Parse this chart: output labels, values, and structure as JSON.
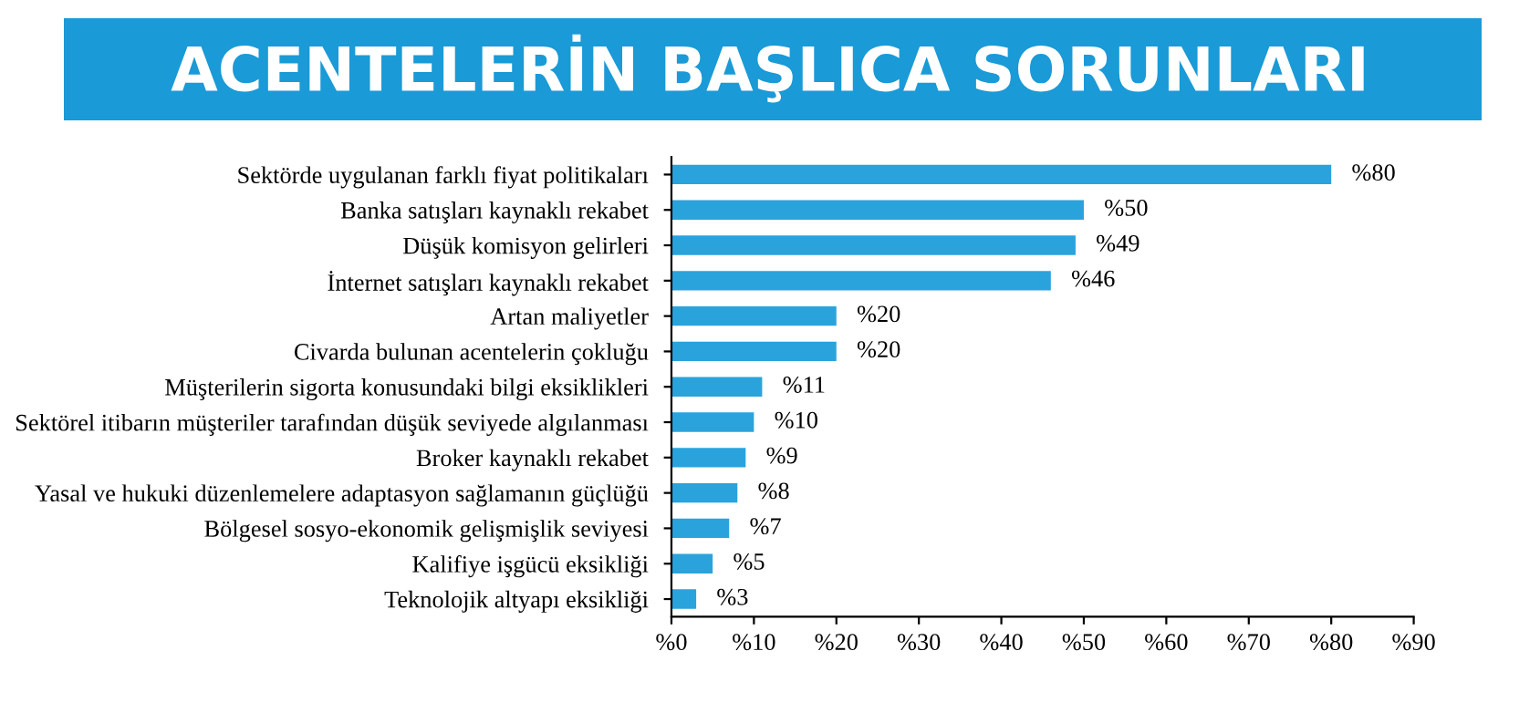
{
  "chart_data": {
    "type": "bar",
    "orientation": "horizontal",
    "title": "ACENTELERİN BAŞLICA SORUNLARI",
    "categories": [
      "Sektörde uygulanan farklı fiyat politikaları",
      "Banka satışları kaynaklı rekabet",
      "Düşük komisyon gelirleri",
      "İnternet satışları kaynaklı rekabet",
      "Artan maliyetler",
      "Civarda bulunan acentelerin çokluğu",
      "Müşterilerin sigorta konusundaki bilgi eksiklikleri",
      "Sektörel itibarın müşteriler tarafından düşük seviyede algılanması",
      "Broker kaynaklı rekabet",
      "Yasal ve hukuki düzenlemelere adaptasyon sağlamanın güçlüğü",
      "Bölgesel sosyo-ekonomik gelişmişlik seviyesi",
      "Kalifiye işgücü eksikliği",
      "Teknolojik altyapı eksikliği"
    ],
    "values": [
      80,
      50,
      49,
      46,
      20,
      20,
      11,
      10,
      9,
      8,
      7,
      5,
      3
    ],
    "value_labels": [
      "%80",
      "%50",
      "%49",
      "%46",
      "%20",
      "%20",
      "%11",
      "%10",
      "%9",
      "%8",
      "%7",
      "%5",
      "%3"
    ],
    "color": "#2aa3dc",
    "xlim": [
      0,
      90
    ],
    "xticks": [
      {
        "value": 0,
        "label": "%0"
      },
      {
        "value": 10,
        "label": "%10"
      },
      {
        "value": 20,
        "label": "%20"
      },
      {
        "value": 30,
        "label": "%30"
      },
      {
        "value": 40,
        "label": "%40"
      },
      {
        "value": 50,
        "label": "%50"
      },
      {
        "value": 60,
        "label": "%60"
      },
      {
        "value": 70,
        "label": "%70"
      },
      {
        "value": 80,
        "label": "%80"
      },
      {
        "value": 90,
        "label": "%90"
      }
    ],
    "grid": false,
    "legend": false
  }
}
